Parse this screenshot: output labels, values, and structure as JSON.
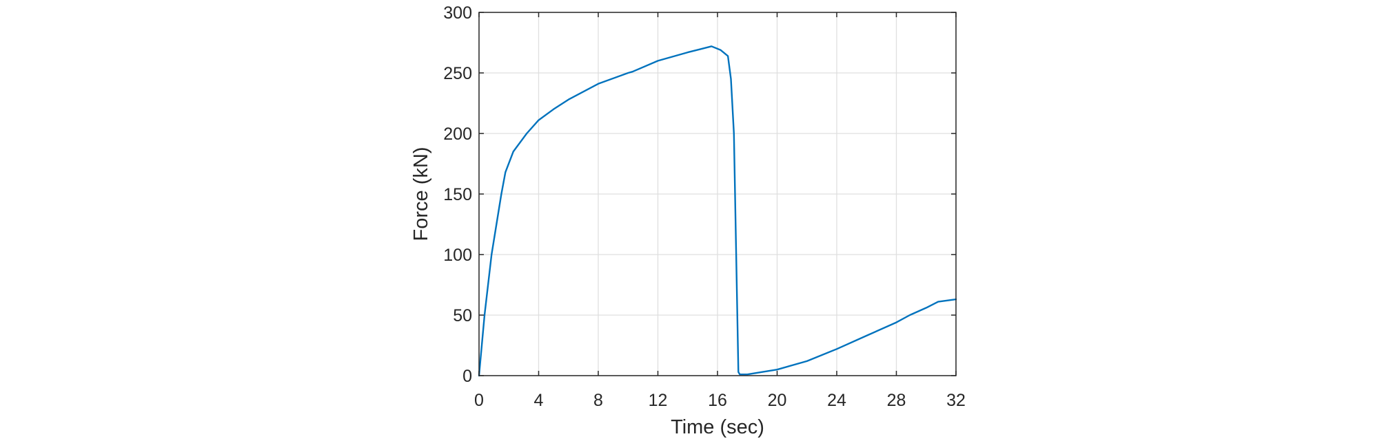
{
  "chart_data": {
    "type": "line",
    "title": "",
    "xlabel": "Time (sec)",
    "ylabel": "Force (kN)",
    "xlim": [
      0,
      32
    ],
    "ylim": [
      0,
      300
    ],
    "xticks": [
      0,
      4,
      8,
      12,
      16,
      20,
      24,
      28,
      32
    ],
    "yticks": [
      0,
      50,
      100,
      150,
      200,
      250,
      300
    ],
    "xtick_labels": [
      "0",
      "4",
      "8",
      "12",
      "16",
      "20",
      "24",
      "28",
      "32"
    ],
    "ytick_labels": [
      "0",
      "50",
      "100",
      "150",
      "200",
      "250",
      "300"
    ],
    "grid": true,
    "legend": null,
    "series": [
      {
        "name": "Force",
        "color": "#0072BD",
        "x": [
          0,
          0.37,
          0.84,
          1.5,
          1.77,
          2.3,
          3.2,
          4,
          5,
          6,
          8,
          10,
          10.3,
          12,
          14,
          15.6,
          16.2,
          16.7,
          16.9,
          17.1,
          17.4,
          17.5,
          18,
          20,
          22,
          24,
          26,
          28,
          28.9,
          30,
          30.8,
          32
        ],
        "y": [
          0,
          50,
          100,
          150,
          168,
          185,
          200,
          211,
          220,
          228,
          241,
          250,
          251,
          260,
          267,
          272,
          269,
          264,
          245,
          200,
          3,
          1,
          1,
          5,
          12,
          22,
          33,
          44,
          50,
          56,
          61,
          63
        ]
      }
    ]
  },
  "colors": {
    "line": "#0072BD",
    "axes": "#262626",
    "grid": "#DFDFDF",
    "background": "#FFFFFF"
  }
}
